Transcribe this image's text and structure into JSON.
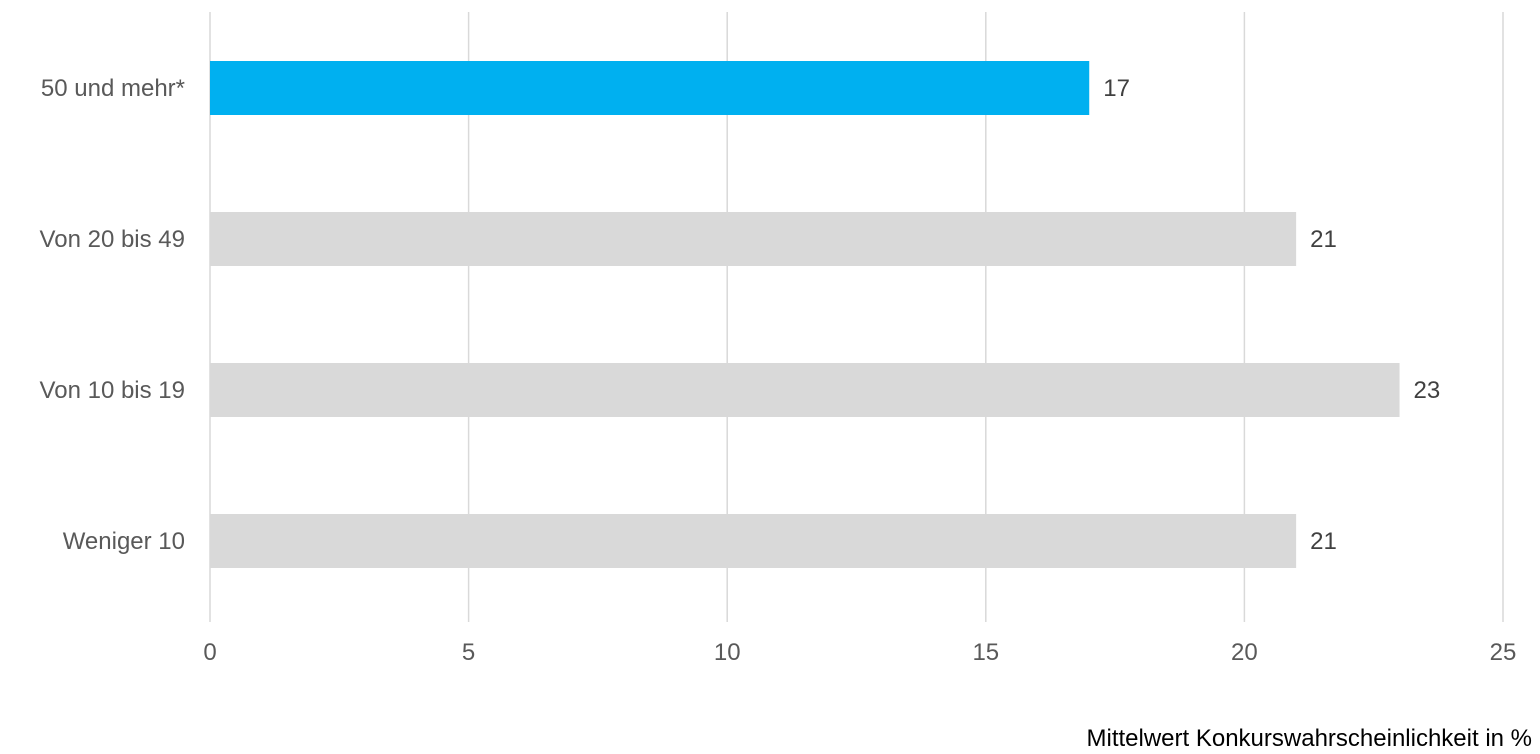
{
  "chart_data": {
    "type": "bar",
    "orientation": "horizontal",
    "categories": [
      "50 und mehr*",
      "Von 20 bis 49",
      "Von 10 bis 19",
      "Weniger 10"
    ],
    "values": [
      17,
      21,
      23,
      21
    ],
    "data_labels": [
      "17",
      "21",
      "23",
      "21"
    ],
    "bar_colors": [
      "#00b0f0",
      "#d9d9d9",
      "#d9d9d9",
      "#d9d9d9"
    ],
    "xlim": [
      0,
      25
    ],
    "xticks": [
      0,
      5,
      10,
      15,
      20,
      25
    ],
    "tick_labels": [
      "0",
      "5",
      "10",
      "15",
      "20",
      "25"
    ],
    "xlabel": "Mittelwert Konkurswahrscheinlichkeit in %",
    "grid": "vertical",
    "legend": "none"
  }
}
